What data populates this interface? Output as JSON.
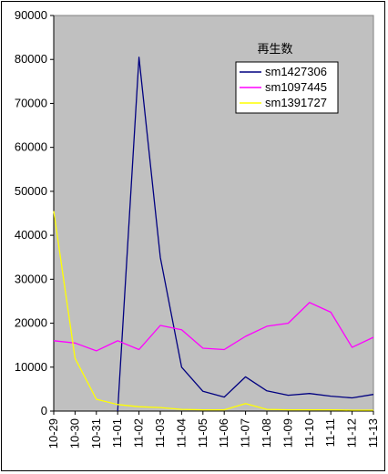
{
  "chart_data": {
    "type": "line",
    "title": "",
    "xlabel": "",
    "ylabel": "",
    "ylim": [
      0,
      90000
    ],
    "yticks": [
      0,
      10000,
      20000,
      30000,
      40000,
      50000,
      60000,
      70000,
      80000,
      90000
    ],
    "grid": false,
    "legend": {
      "title": "再生数",
      "position": "top-right"
    },
    "plot_background": "#c0c0c0",
    "categories": [
      "10-29",
      "10-30",
      "10-31",
      "11-01",
      "11-02",
      "11-03",
      "11-04",
      "11-05",
      "11-06",
      "11-07",
      "11-08",
      "11-09",
      "11-10",
      "11-11",
      "11-12",
      "11-13"
    ],
    "series": [
      {
        "name": "sm1427306",
        "color": "#000080",
        "values": [
          null,
          null,
          null,
          0,
          80500,
          35000,
          10000,
          4500,
          3200,
          7800,
          4600,
          3600,
          4000,
          3400,
          3000,
          3800
        ]
      },
      {
        "name": "sm1097445",
        "color": "#ff00ff",
        "values": [
          16000,
          15500,
          13700,
          16000,
          14000,
          19500,
          18500,
          14300,
          14000,
          17000,
          19300,
          20000,
          24700,
          22500,
          14500,
          16800
        ]
      },
      {
        "name": "sm1391727",
        "color": "#ffff00",
        "values": [
          45500,
          12000,
          2700,
          1500,
          1000,
          800,
          400,
          300,
          300,
          1700,
          400,
          300,
          300,
          300,
          200,
          200
        ]
      }
    ]
  }
}
